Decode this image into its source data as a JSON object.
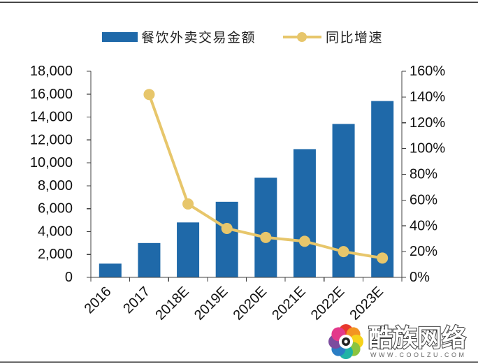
{
  "chart_data": {
    "type": "bar",
    "categories": [
      "2016",
      "2017",
      "2018E",
      "2019E",
      "2020E",
      "2021E",
      "2022E",
      "2023E"
    ],
    "series": [
      {
        "name": "餐饮外卖交易金额",
        "type": "bar",
        "axis": "left",
        "values": [
          1200,
          3000,
          4800,
          6600,
          8700,
          11200,
          13400,
          15400
        ],
        "color": "#1F69A9"
      },
      {
        "name": "同比增速",
        "type": "line",
        "axis": "right",
        "values": [
          null,
          142,
          57,
          38,
          31,
          28,
          20,
          15
        ],
        "color": "#E7C66B"
      }
    ],
    "y_left": {
      "min": 0,
      "max": 18000,
      "step": 2000,
      "tick_labels": [
        "0",
        "2,000",
        "4,000",
        "6,000",
        "8,000",
        "10,000",
        "12,000",
        "14,000",
        "16,000",
        "18,000"
      ]
    },
    "y_right": {
      "min": 0,
      "max": 160,
      "step": 20,
      "tick_labels": [
        "0%",
        "20%",
        "40%",
        "60%",
        "80%",
        "100%",
        "120%",
        "140%",
        "160%"
      ]
    },
    "legend": "top",
    "grid": false
  },
  "watermark": {
    "brand": "酷族网络",
    "url": "WWW.COOLZU.COM"
  }
}
